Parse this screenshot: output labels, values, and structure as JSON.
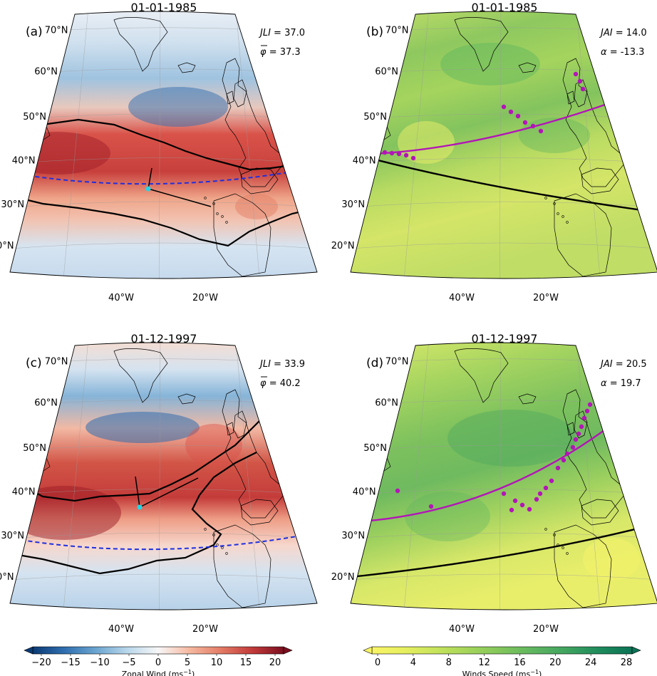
{
  "panels": [
    {
      "id": "a",
      "letter": "(a)",
      "date": "01-01-1985",
      "field": "zonal",
      "stats": [
        {
          "name": "JLI",
          "sym": "",
          "op": "= 37.0"
        },
        {
          "name": "",
          "sym": "φ",
          "op": "= 37.3"
        }
      ]
    },
    {
      "id": "b",
      "letter": "(b)",
      "date": "01-01-1985",
      "field": "speed",
      "stats": [
        {
          "name": "JAI",
          "sym": "",
          "op": "= 14.0"
        },
        {
          "name": "",
          "sym": "α",
          "op": "= -13.3"
        }
      ]
    },
    {
      "id": "c",
      "letter": "(c)",
      "date": "01-12-1997",
      "field": "zonal",
      "stats": [
        {
          "name": "JLI",
          "sym": "",
          "op": "= 33.9"
        },
        {
          "name": "",
          "sym": "φ",
          "op": "= 40.2"
        }
      ]
    },
    {
      "id": "d",
      "letter": "(d)",
      "date": "01-12-1997",
      "field": "speed",
      "stats": [
        {
          "name": "JAI",
          "sym": "",
          "op": "= 20.5"
        },
        {
          "name": "",
          "sym": "α",
          "op": "= 19.7"
        }
      ]
    }
  ],
  "lat_labels": [
    "70°N",
    "60°N",
    "50°N",
    "40°N",
    "30°N",
    "20°N"
  ],
  "lon_labels": [
    "40°W",
    "20°W"
  ],
  "colorbars": {
    "zonal": {
      "label": "Zonal Wind (ms",
      "label_sup": "−1",
      "ticks": [
        "−20",
        "−15",
        "−10",
        "−5",
        "0",
        "5",
        "10",
        "15",
        "20"
      ],
      "colors": [
        "#0b3a73",
        "#2f6eaf",
        "#6aa4cf",
        "#b8d6ea",
        "#f7f7f7",
        "#f5b9a0",
        "#e37b65",
        "#c23a3a",
        "#7a0f1f"
      ]
    },
    "speed": {
      "label": "Winds Speed (ms",
      "label_sup": "−1",
      "ticks": [
        "0",
        "4",
        "8",
        "12",
        "16",
        "20",
        "24",
        "28"
      ],
      "colors": [
        "#f8f466",
        "#e6ef5f",
        "#c5e35c",
        "#a2d45b",
        "#80c55c",
        "#5eb560",
        "#3fa35f",
        "#1e8b5c",
        "#0b7355"
      ]
    }
  },
  "colors": {
    "jet_axis": "#1f2fe0",
    "jai_arc": "#b315b8",
    "jet_point": "#22d6e6",
    "contour": "#000000"
  }
}
